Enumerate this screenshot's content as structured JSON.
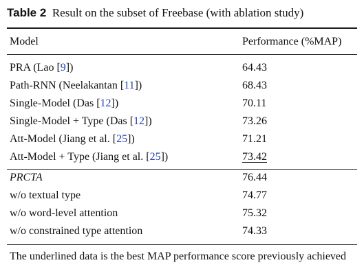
{
  "caption": {
    "label": "Table 2",
    "text": "Result on the subset of Freebase (with ablation study)"
  },
  "header": {
    "model": "Model",
    "performance": "Performance (%MAP)"
  },
  "rows": [
    {
      "pre": "PRA (Lao ",
      "ref": "9",
      "post": ")",
      "value": "64.43"
    },
    {
      "pre": "Path-RNN (Neelakantan ",
      "ref": "11",
      "post": ")",
      "value": "68.43"
    },
    {
      "pre": "Single-Model (Das ",
      "ref": "12",
      "post": ")",
      "value": "70.11"
    },
    {
      "pre": "Single-Model + Type (Das ",
      "ref": "12",
      "post": ")",
      "value": "73.26"
    },
    {
      "pre": "Att-Model (Jiang et al. ",
      "ref": "25",
      "post": ")",
      "value": "71.21"
    },
    {
      "pre": "Att-Model + Type (Jiang et al. ",
      "ref": "25",
      "post": ")",
      "value": "73.42"
    },
    {
      "pre": "PRCTA",
      "ref": "",
      "post": "",
      "value": "76.44"
    },
    {
      "pre": "w/o textual type",
      "ref": "",
      "post": "",
      "value": "74.77"
    },
    {
      "pre": "w/o word-level attention",
      "ref": "",
      "post": "",
      "value": "75.32"
    },
    {
      "pre": "w/o constrained type attention",
      "ref": "",
      "post": "",
      "value": "74.33"
    }
  ],
  "footnote": "The underlined data is the best MAP performance score previously achieved"
}
